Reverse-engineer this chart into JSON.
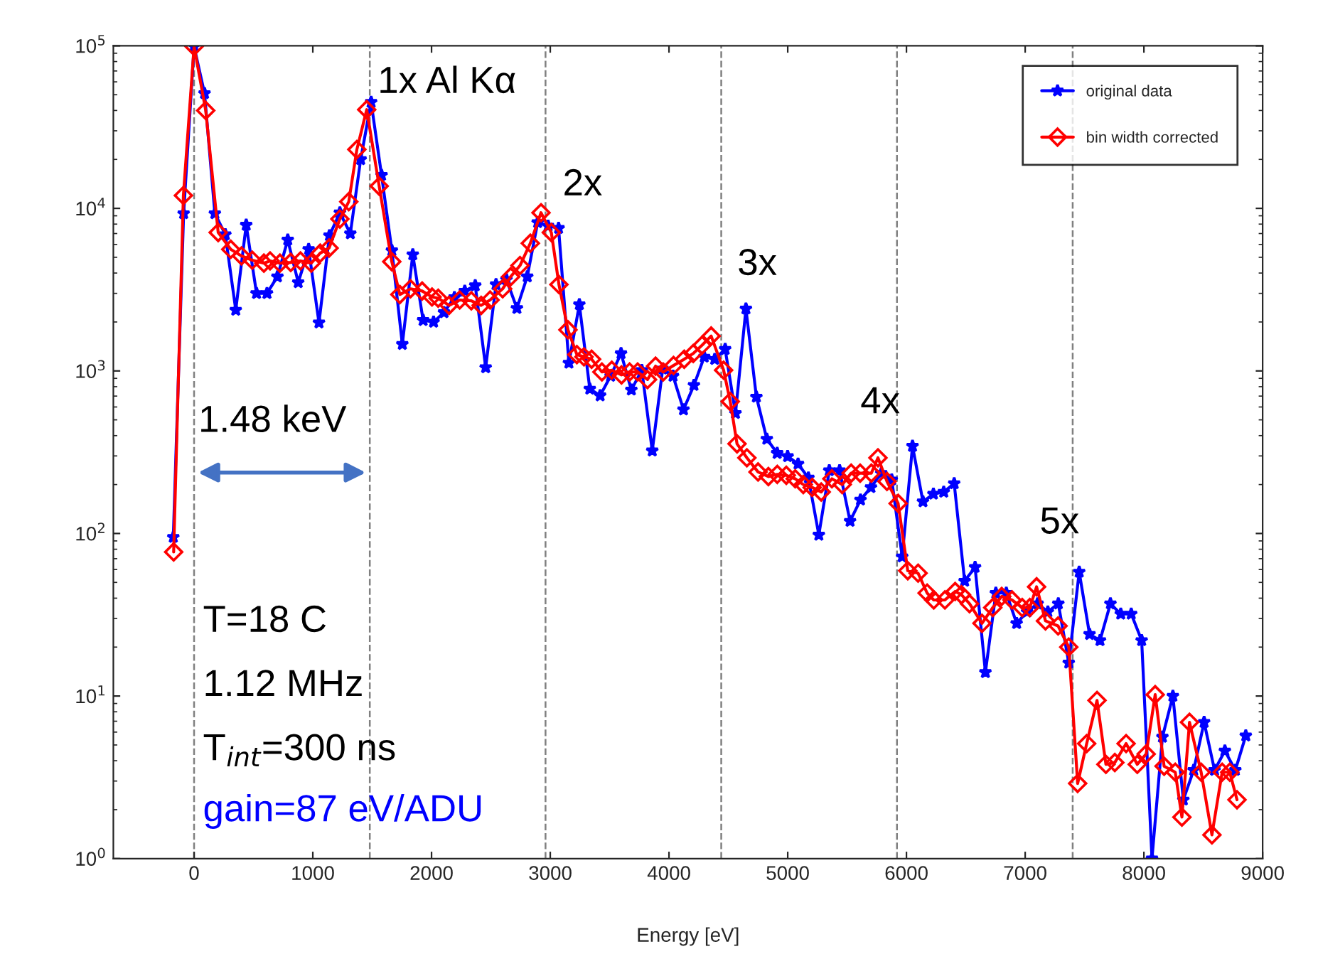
{
  "chart_data": {
    "type": "line",
    "xlabel": "Energy [eV]",
    "log": "y",
    "legend": "top right",
    "grid": false,
    "xlim": [
      -680,
      9000
    ],
    "xticks": [
      0,
      1000,
      2000,
      3000,
      4000,
      5000,
      6000,
      7000,
      8000,
      9000
    ],
    "ylim": [
      1,
      100000
    ],
    "yticks": [
      {
        "value": 1,
        "label": "10$^{0}$"
      },
      {
        "value": 10,
        "label": "10$^{1}$"
      },
      {
        "value": 100,
        "label": "10$^{2}$"
      },
      {
        "value": 1000,
        "label": "10$^{3}$"
      },
      {
        "value": 10000,
        "label": "10$^{4}$"
      },
      {
        "value": 100000,
        "label": "10$^{5}$"
      }
    ],
    "series": [
      {
        "name": "original data",
        "color": "#0000ff",
        "marker": "star",
        "line_style": "solid",
        "x": [
          -175,
          -88,
          0,
          88,
          175,
          263,
          351,
          439,
          526,
          614,
          702,
          789,
          877,
          965,
          1052,
          1140,
          1228,
          1316,
          1403,
          1491,
          1579,
          1666,
          1754,
          1842,
          1929,
          2017,
          2105,
          2193,
          2280,
          2368,
          2456,
          2543,
          2631,
          2719,
          2806,
          2894,
          2982,
          3070,
          3157,
          3245,
          3333,
          3420,
          3508,
          3596,
          3683,
          3771,
          3859,
          3947,
          4034,
          4122,
          4210,
          4297,
          4385,
          4473,
          4560,
          4648,
          4736,
          4824,
          4911,
          4999,
          5087,
          5174,
          5262,
          5350,
          5437,
          5525,
          5613,
          5701,
          5788,
          5876,
          5964,
          6051,
          6139,
          6227,
          6314,
          6402,
          6490,
          6578,
          6665,
          6753,
          6841,
          6928,
          7016,
          7104,
          7191,
          7279,
          7367,
          7455,
          7542,
          7630,
          7718,
          7805,
          7893,
          7981,
          8068,
          8156,
          8244,
          8332,
          8419,
          8507,
          8595,
          8682,
          8770,
          8858
        ],
        "values": [
          95,
          9300,
          99000,
          51000,
          9300,
          6900,
          2370,
          7900,
          3000,
          3000,
          3800,
          6400,
          3500,
          5600,
          1980,
          6800,
          9400,
          7000,
          20000,
          45000,
          16000,
          5500,
          1460,
          5200,
          2050,
          2000,
          2290,
          2830,
          3100,
          3350,
          1050,
          3400,
          3650,
          2430,
          3800,
          8200,
          7800,
          7550,
          1120,
          2560,
          775,
          705,
          930,
          1280,
          765,
          1010,
          323,
          1030,
          930,
          578,
          817,
          1220,
          1180,
          1360,
          549,
          2410,
          692,
          381,
          312,
          298,
          268,
          220,
          98,
          244,
          244,
          119,
          161,
          192,
          235,
          214,
          72,
          345,
          157,
          175,
          180,
          203,
          51,
          62,
          14,
          43,
          43,
          28,
          33,
          37,
          33,
          37,
          16,
          58,
          24,
          22,
          37,
          32,
          32,
          22,
          1,
          5.6,
          10,
          2.3,
          3.5,
          6.9,
          3.5,
          4.6,
          3.5,
          5.7
        ]
      },
      {
        "name": "bin width corrected",
        "color": "#ff0000",
        "marker": "diamond",
        "line_style": "solid",
        "x": [
          -172,
          -90,
          0,
          98,
          203,
          309,
          399,
          490,
          588,
          640,
          723,
          814,
          896,
          987,
          1062,
          1137,
          1228,
          1303,
          1371,
          1454,
          1559,
          1665,
          1733,
          1823,
          1921,
          2004,
          2056,
          2147,
          2237,
          2335,
          2418,
          2493,
          2599,
          2667,
          2745,
          2832,
          2922,
          3009,
          3073,
          3149,
          3224,
          3284,
          3348,
          3435,
          3518,
          3600,
          3668,
          3736,
          3819,
          3887,
          3951,
          4038,
          4128,
          4204,
          4279,
          4355,
          4460,
          4516,
          4573,
          4656,
          4750,
          4837,
          4912,
          4988,
          5063,
          5131,
          5206,
          5282,
          5372,
          5459,
          5534,
          5610,
          5704,
          5760,
          5836,
          5930,
          6011,
          6098,
          6174,
          6230,
          6324,
          6410,
          6463,
          6531,
          6636,
          6727,
          6802,
          6889,
          6975,
          7039,
          7096,
          7171,
          7277,
          7367,
          7442,
          7518,
          7605,
          7680,
          7755,
          7850,
          7944,
          8019,
          8095,
          8170,
          8264,
          8320,
          8384,
          8482,
          8573,
          8659,
          8723,
          8784
        ],
        "values": [
          77,
          12000,
          99000,
          40000,
          7100,
          5600,
          5100,
          4800,
          4600,
          4750,
          4600,
          4650,
          4750,
          4600,
          5300,
          5700,
          8600,
          11000,
          23000,
          40500,
          13700,
          4700,
          2950,
          3200,
          3100,
          2850,
          2800,
          2530,
          2730,
          2700,
          2530,
          2730,
          3200,
          3800,
          4450,
          6100,
          9400,
          7100,
          3400,
          1790,
          1260,
          1220,
          1180,
          985,
          1010,
          945,
          985,
          985,
          885,
          1070,
          985,
          1080,
          1180,
          1280,
          1440,
          1640,
          1010,
          648,
          356,
          292,
          239,
          224,
          231,
          228,
          217,
          200,
          192,
          180,
          217,
          200,
          235,
          235,
          235,
          292,
          209,
          153,
          59,
          57,
          43,
          39,
          39,
          44,
          42,
          37,
          28,
          35,
          41,
          39,
          35,
          35,
          47,
          29,
          27,
          20,
          2.9,
          5.1,
          9.4,
          3.8,
          3.9,
          5.1,
          3.8,
          4.4,
          10.2,
          3.7,
          3.4,
          1.8,
          6.9,
          3.4,
          1.4,
          3.4,
          3.4,
          2.3
        ]
      }
    ],
    "ref_lines": [
      {
        "axis": "x",
        "value": 0,
        "color": "#808080",
        "line_style": "dashed"
      },
      {
        "axis": "x",
        "value": 1480,
        "color": "#808080",
        "line_style": "dashed"
      },
      {
        "axis": "x",
        "value": 2960,
        "color": "#808080",
        "line_style": "dashed"
      },
      {
        "axis": "x",
        "value": 4440,
        "color": "#808080",
        "line_style": "dashed"
      },
      {
        "axis": "x",
        "value": 5920,
        "color": "#808080",
        "line_style": "dashed"
      },
      {
        "axis": "x",
        "value": 7400,
        "color": "#808080",
        "line_style": "dashed"
      }
    ],
    "annotations": [
      "1x Al Kα",
      "2x",
      "3x",
      "4x",
      "5x",
      "1.48 keV",
      "T=18 C",
      "1.12 MHz",
      "T$_{int}$=300 ns",
      "gain=87 eV/ADU"
    ]
  }
}
